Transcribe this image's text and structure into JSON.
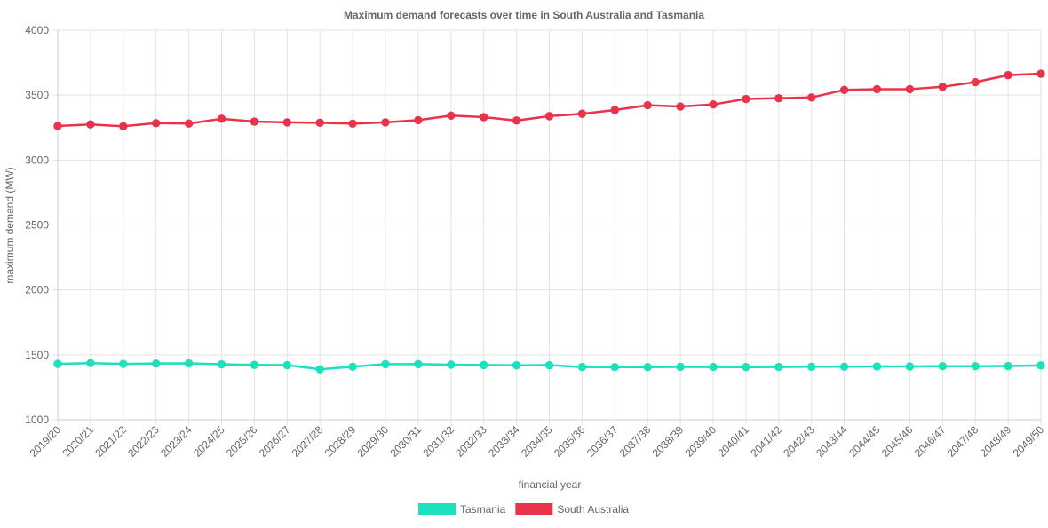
{
  "chart_data": {
    "type": "line",
    "title": "Maximum demand forecasts over time in South Australia and Tasmania",
    "xlabel": "financial year",
    "ylabel": "maximum demand (MW)",
    "ylim": [
      1000,
      4000
    ],
    "yticks": [
      1000,
      1500,
      2000,
      2500,
      3000,
      3500,
      4000
    ],
    "grid": true,
    "legend_position": "bottom",
    "categories": [
      "2019/20",
      "2020/21",
      "2021/22",
      "2022/23",
      "2023/24",
      "2024/25",
      "2025/26",
      "2026/27",
      "2027/28",
      "2028/29",
      "2029/30",
      "2030/31",
      "2031/32",
      "2032/33",
      "2033/34",
      "2034/35",
      "2035/36",
      "2036/37",
      "2037/38",
      "2038/39",
      "2039/40",
      "2040/41",
      "2041/42",
      "2042/43",
      "2043/44",
      "2044/45",
      "2045/46",
      "2046/47",
      "2047/48",
      "2048/49",
      "2049/50"
    ],
    "series": [
      {
        "name": "Tasmania",
        "color": "#1de0bd",
        "values": [
          1430,
          1436,
          1430,
          1433,
          1434,
          1427,
          1422,
          1420,
          1388,
          1408,
          1428,
          1428,
          1424,
          1421,
          1419,
          1420,
          1406,
          1405,
          1405,
          1407,
          1406,
          1405,
          1406,
          1408,
          1408,
          1410,
          1410,
          1412,
          1412,
          1413,
          1418
        ]
      },
      {
        "name": "South Australia",
        "color": "#e8334a",
        "values": [
          3262,
          3274,
          3260,
          3284,
          3281,
          3318,
          3296,
          3290,
          3287,
          3280,
          3290,
          3307,
          3342,
          3330,
          3304,
          3338,
          3356,
          3385,
          3422,
          3412,
          3428,
          3470,
          3476,
          3482,
          3540,
          3546,
          3546,
          3564,
          3600,
          3654,
          3665
        ]
      }
    ]
  }
}
